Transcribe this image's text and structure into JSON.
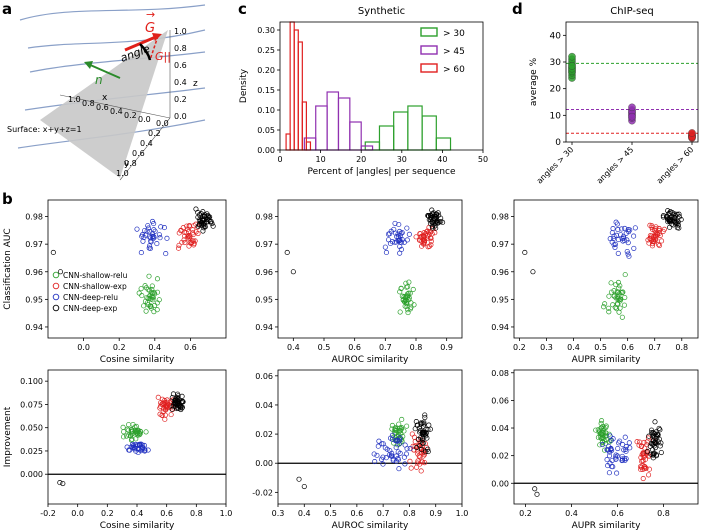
{
  "panel_letters": {
    "a": "a",
    "b": "b",
    "c": "c",
    "d": "d"
  },
  "schematic": {
    "vec_g": "G",
    "vec_g_par": "G||",
    "angle_label": "angle",
    "normal_label": "n",
    "surface_label": "Surface: x+y+z=1",
    "axis_x": "x",
    "axis_y": "y",
    "axis_z": "z",
    "x_ticks": [
      "1.0",
      "0.8",
      "0.6",
      "0.4",
      "0.2",
      "0.0"
    ],
    "y_ticks": [
      "0.0",
      "0.2",
      "0.4",
      "0.6",
      "0.8",
      "1.0"
    ],
    "z_ticks": [
      "1.0",
      "0.8",
      "0.6",
      "0.4",
      "0.2",
      "0.0"
    ],
    "colors": {
      "surface": "#c8c8c8",
      "gradient": "#e0201a",
      "normal": "#2a8a2a",
      "curves": "#8aa0c8"
    }
  },
  "chart_data": [
    {
      "id": "c",
      "type": "line",
      "title": "Synthetic",
      "xlabel": "Percent of |angles| per sequence",
      "ylabel": "Density",
      "xlim": [
        0,
        50
      ],
      "ylim": [
        0,
        0.32
      ],
      "xticks": [
        0,
        10,
        20,
        30,
        40,
        50
      ],
      "yticks": [
        0.0,
        0.05,
        0.1,
        0.15,
        0.2,
        0.25,
        0.3
      ],
      "ytick_labels": [
        "0.00",
        "0.05",
        "0.10",
        "0.15",
        "0.20",
        "0.25",
        "0.30"
      ],
      "legend_position": "top-right",
      "series": [
        {
          "name": "> 30",
          "color": "#2ca02c",
          "bin_width": 3.5,
          "bins": [
            21,
            24.5,
            28,
            31.5,
            35,
            38.5
          ],
          "values": [
            0.02,
            0.06,
            0.095,
            0.11,
            0.085,
            0.03
          ]
        },
        {
          "name": "> 45",
          "color": "#9030b0",
          "bin_width": 2.8,
          "bins": [
            6,
            8.8,
            11.6,
            14.4,
            17.2,
            20
          ],
          "values": [
            0.03,
            0.11,
            0.145,
            0.13,
            0.07,
            0.01
          ]
        },
        {
          "name": "> 60",
          "color": "#e02020",
          "bin_width": 1.0,
          "bins": [
            1.5,
            2.5,
            3.5,
            4.5,
            5.5,
            6.5
          ],
          "values": [
            0.04,
            0.32,
            0.3,
            0.27,
            0.12,
            0.02
          ]
        }
      ]
    },
    {
      "id": "d",
      "type": "scatter",
      "title": "ChIP-seq",
      "ylabel": "average %",
      "ylim": [
        0,
        45
      ],
      "yticks": [
        0,
        10,
        20,
        30,
        40
      ],
      "categories": [
        "angles > 30",
        "angles > 45",
        "angles > 60"
      ],
      "hlines": [
        {
          "value": 29.5,
          "color": "#2ca02c"
        },
        {
          "value": 12.2,
          "color": "#9030b0"
        },
        {
          "value": 3.3,
          "color": "#e02020"
        }
      ],
      "series": [
        {
          "category": "angles > 30",
          "color": "#2ca02c",
          "values": [
            24,
            25,
            26,
            27,
            28,
            29,
            30,
            31,
            32,
            26.5,
            27.5,
            28.5
          ]
        },
        {
          "category": "angles > 45",
          "color": "#9030b0",
          "values": [
            8,
            9,
            10,
            11,
            12,
            10.5,
            11.5,
            9.5,
            13
          ]
        },
        {
          "category": "angles > 60",
          "color": "#e02020",
          "values": [
            1.5,
            2,
            2.5,
            3,
            2.2,
            1.8,
            3.4
          ]
        }
      ]
    },
    {
      "id": "b1",
      "type": "scatter",
      "xlabel": "Cosine similarity",
      "ylabel": "Classification AUC",
      "xlim": [
        -0.2,
        0.8
      ],
      "ylim": [
        0.936,
        0.986
      ],
      "xticks": [
        0.0,
        0.2,
        0.4,
        0.6
      ],
      "yticks": [
        0.94,
        0.95,
        0.96,
        0.97,
        0.98
      ],
      "xtick_labels": [
        "0.0",
        "0.2",
        "0.4",
        "0.6"
      ],
      "ytick_labels": [
        "0.94",
        "0.95",
        "0.96",
        "0.97",
        "0.98"
      ],
      "legend": [
        "CNN-shallow-relu",
        "CNN-shallow-exp",
        "CNN-deep-relu",
        "CNN-deep-exp"
      ],
      "legend_position": "left",
      "clusters": [
        {
          "series": "CNN-shallow-relu",
          "color": "#2ca02c",
          "n": 40,
          "center": [
            0.38,
            0.951
          ],
          "spread": [
            0.05,
            0.006
          ]
        },
        {
          "series": "CNN-shallow-exp",
          "color": "#e02020",
          "n": 40,
          "center": [
            0.6,
            0.973
          ],
          "spread": [
            0.05,
            0.004
          ]
        },
        {
          "series": "CNN-deep-relu",
          "color": "#2030c0",
          "n": 35,
          "center": [
            0.38,
            0.972
          ],
          "spread": [
            0.07,
            0.006
          ]
        },
        {
          "series": "CNN-deep-exp",
          "color": "#000000",
          "n": 45,
          "center": [
            0.68,
            0.979
          ],
          "spread": [
            0.04,
            0.003
          ]
        }
      ],
      "outliers": [
        [
          -0.17,
          0.967
        ],
        [
          -0.13,
          0.96
        ]
      ]
    },
    {
      "id": "b2",
      "type": "scatter",
      "xlabel": "AUROC similarity",
      "xlim": [
        0.35,
        0.95
      ],
      "ylim": [
        0.936,
        0.986
      ],
      "xticks": [
        0.4,
        0.5,
        0.6,
        0.7,
        0.8,
        0.9
      ],
      "yticks": [
        0.94,
        0.95,
        0.96,
        0.97,
        0.98
      ],
      "xtick_labels": [
        "0.4",
        "0.5",
        "0.6",
        "0.7",
        "0.8",
        "0.9"
      ],
      "ytick_labels": [
        "0.94",
        "0.95",
        "0.96",
        "0.97",
        "0.98"
      ],
      "clusters": [
        {
          "series": "CNN-shallow-relu",
          "color": "#2ca02c",
          "n": 40,
          "center": [
            0.77,
            0.951
          ],
          "spread": [
            0.025,
            0.006
          ]
        },
        {
          "series": "CNN-shallow-exp",
          "color": "#e02020",
          "n": 40,
          "center": [
            0.83,
            0.972
          ],
          "spread": [
            0.025,
            0.004
          ]
        },
        {
          "series": "CNN-deep-relu",
          "color": "#2030c0",
          "n": 35,
          "center": [
            0.74,
            0.972
          ],
          "spread": [
            0.035,
            0.006
          ]
        },
        {
          "series": "CNN-deep-exp",
          "color": "#000000",
          "n": 45,
          "center": [
            0.86,
            0.979
          ],
          "spread": [
            0.02,
            0.003
          ]
        }
      ],
      "outliers": [
        [
          0.38,
          0.967
        ],
        [
          0.4,
          0.96
        ]
      ]
    },
    {
      "id": "b3",
      "type": "scatter",
      "xlabel": "AUPR similarity",
      "xlim": [
        0.18,
        0.86
      ],
      "ylim": [
        0.936,
        0.986
      ],
      "xticks": [
        0.2,
        0.3,
        0.4,
        0.5,
        0.6,
        0.7,
        0.8
      ],
      "yticks": [
        0.94,
        0.95,
        0.96,
        0.97,
        0.98
      ],
      "xtick_labels": [
        "0.2",
        "0.3",
        "0.4",
        "0.5",
        "0.6",
        "0.7",
        "0.8"
      ],
      "ytick_labels": [
        "0.94",
        "0.95",
        "0.96",
        "0.97",
        "0.98"
      ],
      "clusters": [
        {
          "series": "CNN-shallow-relu",
          "color": "#2ca02c",
          "n": 40,
          "center": [
            0.56,
            0.951
          ],
          "spread": [
            0.04,
            0.006
          ]
        },
        {
          "series": "CNN-shallow-exp",
          "color": "#e02020",
          "n": 40,
          "center": [
            0.7,
            0.973
          ],
          "spread": [
            0.04,
            0.004
          ]
        },
        {
          "series": "CNN-deep-relu",
          "color": "#2030c0",
          "n": 35,
          "center": [
            0.58,
            0.972
          ],
          "spread": [
            0.05,
            0.006
          ]
        },
        {
          "series": "CNN-deep-exp",
          "color": "#000000",
          "n": 45,
          "center": [
            0.76,
            0.979
          ],
          "spread": [
            0.03,
            0.003
          ]
        }
      ],
      "outliers": [
        [
          0.22,
          0.967
        ],
        [
          0.25,
          0.96
        ]
      ]
    },
    {
      "id": "b4",
      "type": "scatter",
      "xlabel": "Cosine similarity",
      "ylabel": "Improvement",
      "xlim": [
        -0.2,
        1.0
      ],
      "ylim": [
        -0.032,
        0.112
      ],
      "xticks": [
        -0.2,
        0.0,
        0.2,
        0.4,
        0.6,
        0.8,
        1.0
      ],
      "yticks": [
        0.0,
        0.025,
        0.05,
        0.075,
        0.1
      ],
      "xtick_labels": [
        "-0.2",
        "0.0",
        "0.2",
        "0.4",
        "0.6",
        "0.8",
        "1.0"
      ],
      "ytick_labels": [
        "0.000",
        "0.025",
        "0.050",
        "0.075",
        "0.100"
      ],
      "hline": 0,
      "clusters": [
        {
          "series": "CNN-shallow-relu",
          "color": "#2ca02c",
          "n": 40,
          "center": [
            0.38,
            0.045
          ],
          "spread": [
            0.06,
            0.008
          ]
        },
        {
          "series": "CNN-shallow-exp",
          "color": "#e02020",
          "n": 40,
          "center": [
            0.6,
            0.072
          ],
          "spread": [
            0.05,
            0.009
          ]
        },
        {
          "series": "CNN-deep-relu",
          "color": "#2030c0",
          "n": 35,
          "center": [
            0.4,
            0.028
          ],
          "spread": [
            0.08,
            0.005
          ]
        },
        {
          "series": "CNN-deep-exp",
          "color": "#000000",
          "n": 45,
          "center": [
            0.68,
            0.077
          ],
          "spread": [
            0.04,
            0.008
          ]
        }
      ],
      "outliers": [
        [
          -0.12,
          -0.009
        ],
        [
          -0.1,
          -0.01
        ]
      ]
    },
    {
      "id": "b5",
      "type": "scatter",
      "xlabel": "AUROC similarity",
      "xlim": [
        0.3,
        1.0
      ],
      "ylim": [
        -0.028,
        0.064
      ],
      "xticks": [
        0.3,
        0.4,
        0.5,
        0.6,
        0.7,
        0.8,
        0.9,
        1.0
      ],
      "yticks": [
        -0.02,
        0.0,
        0.02,
        0.04,
        0.06
      ],
      "xtick_labels": [
        "0.3",
        "0.4",
        "0.5",
        "0.6",
        "0.7",
        "0.8",
        "0.9",
        "1.0"
      ],
      "ytick_labels": [
        "-0.02",
        "0.00",
        "0.02",
        "0.04",
        "0.06"
      ],
      "hline": 0,
      "clusters": [
        {
          "series": "CNN-shallow-relu",
          "color": "#2ca02c",
          "n": 40,
          "center": [
            0.76,
            0.02
          ],
          "spread": [
            0.03,
            0.008
          ]
        },
        {
          "series": "CNN-shallow-exp",
          "color": "#e02020",
          "n": 40,
          "center": [
            0.84,
            0.008
          ],
          "spread": [
            0.03,
            0.012
          ]
        },
        {
          "series": "CNN-deep-relu",
          "color": "#2030c0",
          "n": 45,
          "center": [
            0.74,
            0.008
          ],
          "spread": [
            0.06,
            0.012
          ]
        },
        {
          "series": "CNN-deep-exp",
          "color": "#000000",
          "n": 45,
          "center": [
            0.85,
            0.02
          ],
          "spread": [
            0.025,
            0.012
          ]
        }
      ],
      "outliers": [
        [
          0.38,
          -0.011
        ],
        [
          0.4,
          -0.016
        ]
      ]
    },
    {
      "id": "b6",
      "type": "scatter",
      "xlabel": "AUPR similarity",
      "xlim": [
        0.15,
        0.95
      ],
      "ylim": [
        -0.015,
        0.082
      ],
      "xticks": [
        0.2,
        0.4,
        0.6,
        0.8
      ],
      "yticks": [
        0.0,
        0.02,
        0.04,
        0.06,
        0.08
      ],
      "xtick_labels": [
        "0.2",
        "0.4",
        "0.6",
        "0.8"
      ],
      "ytick_labels": [
        "0.00",
        "0.02",
        "0.04",
        "0.06",
        "0.08"
      ],
      "hline": 0,
      "clusters": [
        {
          "series": "CNN-shallow-relu",
          "color": "#2ca02c",
          "n": 40,
          "center": [
            0.54,
            0.035
          ],
          "spread": [
            0.03,
            0.01
          ]
        },
        {
          "series": "CNN-shallow-exp",
          "color": "#e02020",
          "n": 40,
          "center": [
            0.72,
            0.02
          ],
          "spread": [
            0.03,
            0.014
          ]
        },
        {
          "series": "CNN-deep-relu",
          "color": "#2030c0",
          "n": 45,
          "center": [
            0.6,
            0.022
          ],
          "spread": [
            0.06,
            0.012
          ]
        },
        {
          "series": "CNN-deep-exp",
          "color": "#000000",
          "n": 45,
          "center": [
            0.76,
            0.03
          ],
          "spread": [
            0.025,
            0.014
          ]
        }
      ],
      "outliers": [
        [
          0.24,
          -0.004
        ],
        [
          0.25,
          -0.008
        ]
      ]
    }
  ]
}
